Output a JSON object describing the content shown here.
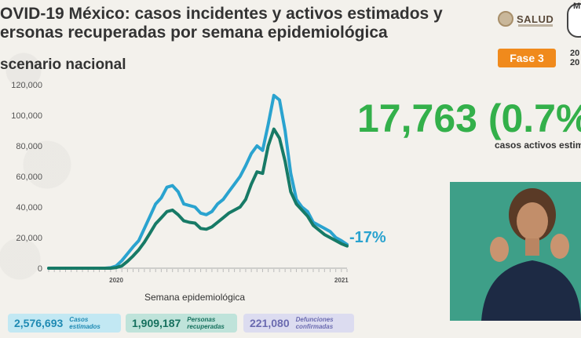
{
  "header": {
    "title_line1": "OVID-19 México: casos incidentes y activos estimados y",
    "title_line2": "ersonas recuperadas por semana epidemiológica",
    "subtitle": "scenario nacional",
    "salud": "SALUD",
    "seal_label": "M",
    "fase": "Fase 3",
    "date_line1": "20",
    "date_line2": "20"
  },
  "headline": {
    "value": "17,763 (0.7%",
    "caption": "casos activos estima"
  },
  "annotation": {
    "change": "-17%"
  },
  "stats": [
    {
      "value": "2,576,693",
      "label_line1": "Casos",
      "label_line2": "estimados"
    },
    {
      "value": "1,909,187",
      "label_line1": "Personas",
      "label_line2": "recuperadas"
    },
    {
      "value": "221,080",
      "label_line1": "Defunciones",
      "label_line2": "confirmadas"
    }
  ],
  "colors": {
    "estimated": "#2aa3cf",
    "active": "#177a66",
    "accent_green": "#33b04a",
    "fase_orange": "#f08a1c"
  },
  "chart_data": {
    "type": "line",
    "title": "",
    "xlabel": "Semana epidemiológica",
    "ylabel": "",
    "ylim": [
      0,
      120000
    ],
    "yticks": [
      0,
      20000,
      40000,
      60000,
      80000,
      100000,
      120000
    ],
    "ytick_labels": [
      "0",
      "20,000",
      "40,000",
      "60,000",
      "80,000",
      "100,000",
      "120,000"
    ],
    "x_year_labels": [
      {
        "week_index": 12,
        "label": "2020"
      },
      {
        "week_index": 52,
        "label": "2021"
      }
    ],
    "grid": false,
    "series": [
      {
        "values": [
          0,
          0,
          0,
          0,
          0,
          0,
          0,
          0,
          0,
          0,
          0,
          300,
          1500,
          5000,
          9500,
          14000,
          18000,
          26000,
          34000,
          42000,
          46000,
          53000,
          54000,
          50000,
          42000,
          41000,
          40000,
          36000,
          35000,
          37000,
          42000,
          45000,
          50000,
          55000,
          60000,
          67000,
          75000,
          80000,
          77000,
          94000,
          113000,
          110000,
          90000,
          62000,
          45000,
          40000,
          37000,
          30000,
          28000,
          26000,
          24000,
          20000,
          18000,
          15500
        ]
      },
      {
        "values": [
          0,
          0,
          0,
          0,
          0,
          0,
          0,
          0,
          0,
          0,
          0,
          0,
          400,
          1500,
          4500,
          8000,
          12000,
          17000,
          23000,
          29000,
          33000,
          37000,
          38000,
          35000,
          31000,
          30000,
          29500,
          26000,
          25500,
          27000,
          30000,
          33000,
          36000,
          38000,
          40000,
          45000,
          55000,
          63000,
          62000,
          80000,
          91000,
          85000,
          70000,
          50000,
          42000,
          38000,
          34000,
          28000,
          25000,
          22000,
          20000,
          18000,
          16000,
          14500
        ]
      }
    ]
  }
}
